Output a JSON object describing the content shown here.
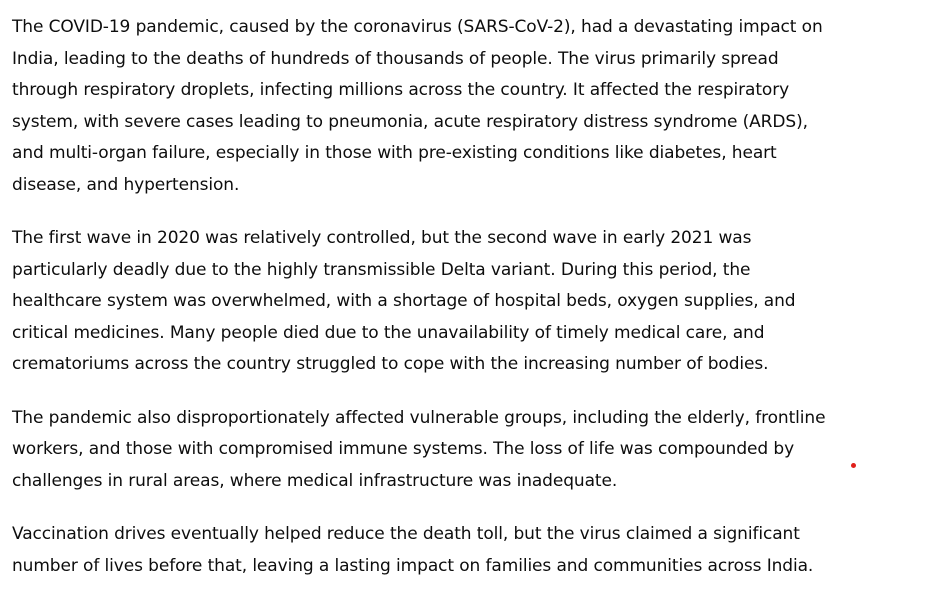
{
  "paragraphs": [
    "The COVID-19 pandemic, caused by the coronavirus (SARS-CoV-2), had a devastating impact on India, leading to the deaths of hundreds of thousands of people. The virus primarily spread through respiratory droplets, infecting millions across the country. It affected the respiratory system, with severe cases leading to pneumonia, acute respiratory distress syndrome (ARDS), and multi-organ failure, especially in those with pre-existing conditions like diabetes, heart disease, and hypertension.",
    "The first wave in 2020 was relatively controlled, but the second wave in early 2021 was particularly deadly due to the highly transmissible Delta variant. During this period, the healthcare system was overwhelmed, with a shortage of hospital beds, oxygen supplies, and critical medicines. Many people died due to the unavailability of timely medical care, and crematoriums across the country struggled to cope with the increasing number of bodies.",
    "The pandemic also disproportionately affected vulnerable groups, including the elderly, frontline workers, and those with compromised immune systems. The loss of life was compounded by challenges in rural areas, where medical infrastructure was inadequate.",
    "Vaccination drives eventually helped reduce the death toll, but the virus claimed a significant number of lives before that, leaving a lasting impact on families and communities across India."
  ],
  "colors": {
    "text": "#0d0d0d",
    "background": "#ffffff",
    "dot": "#e0201b"
  }
}
